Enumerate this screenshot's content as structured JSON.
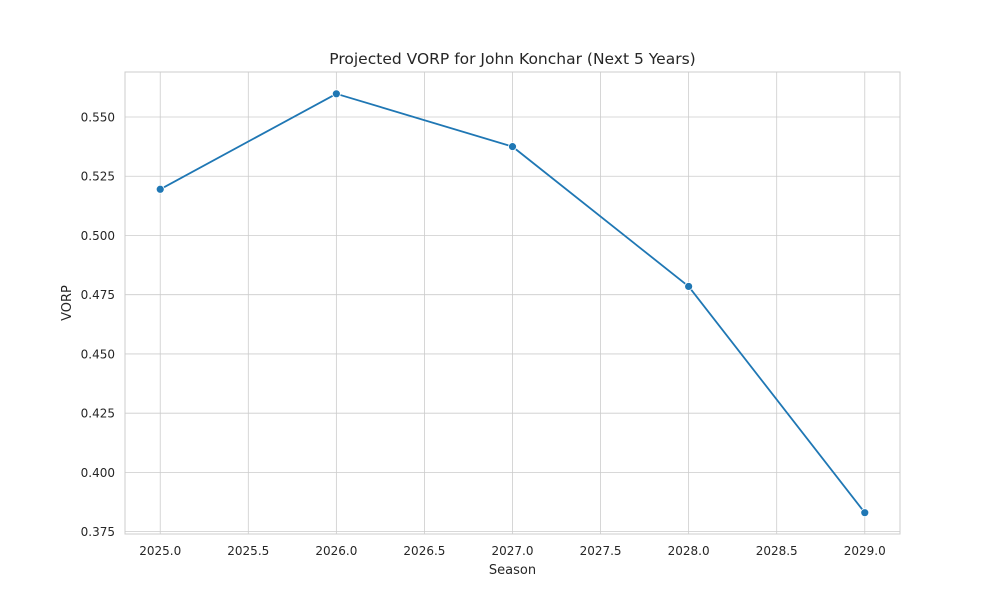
{
  "chart_data": {
    "type": "line",
    "title": "Projected VORP for John Konchar (Next 5 Years)",
    "xlabel": "Season",
    "ylabel": "VORP",
    "xlim": [
      2024.8,
      2029.2
    ],
    "ylim": [
      0.374,
      0.569
    ],
    "x_ticks": [
      2025.0,
      2025.5,
      2026.0,
      2026.5,
      2027.0,
      2027.5,
      2028.0,
      2028.5,
      2029.0
    ],
    "x_tick_labels": [
      "2025.0",
      "2025.5",
      "2026.0",
      "2026.5",
      "2027.0",
      "2027.5",
      "2028.0",
      "2028.5",
      "2029.0"
    ],
    "y_ticks": [
      0.375,
      0.4,
      0.425,
      0.45,
      0.475,
      0.5,
      0.525,
      0.55
    ],
    "y_tick_labels": [
      "0.375",
      "0.400",
      "0.425",
      "0.450",
      "0.475",
      "0.500",
      "0.525",
      "0.550"
    ],
    "grid": true,
    "legend": "none",
    "series": [
      {
        "color": "#1f77b4",
        "marker": "circle",
        "x": [
          2025,
          2026,
          2027,
          2028,
          2029
        ],
        "y": [
          0.5195,
          0.5598,
          0.5375,
          0.4785,
          0.383
        ]
      }
    ]
  }
}
